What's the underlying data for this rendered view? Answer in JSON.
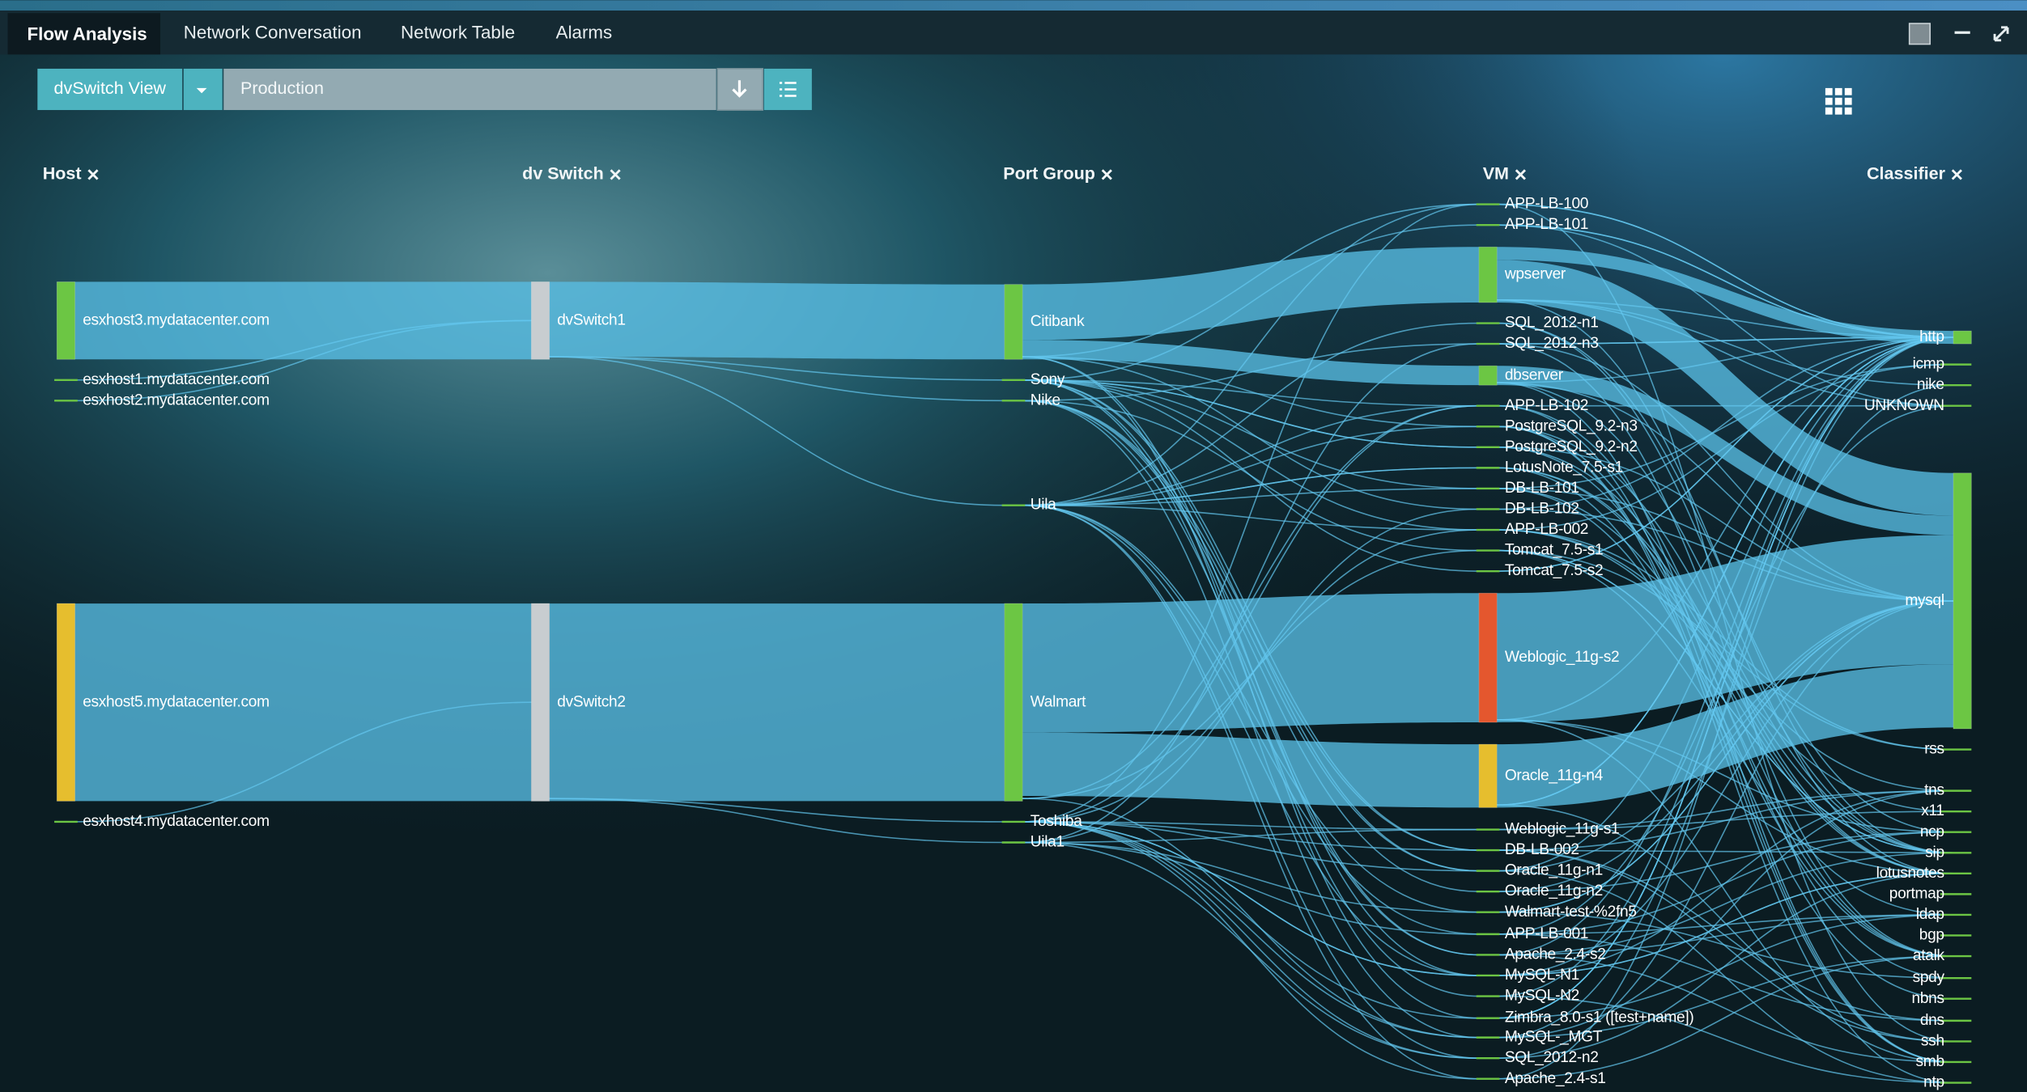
{
  "tabs": [
    "Flow Analysis",
    "Network Conversation",
    "Network Table",
    "Alarms"
  ],
  "toolbar": {
    "view_button": "dvSwitch View",
    "filter": "Production"
  },
  "columns": [
    {
      "title": "Host",
      "nodes": [
        "esxhost3.mydatacenter.com",
        "esxhost1.mydatacenter.com",
        "esxhost2.mydatacenter.com",
        "esxhost5.mydatacenter.com",
        "esxhost4.mydatacenter.com"
      ]
    },
    {
      "title": "dv Switch",
      "nodes": [
        "dvSwitch1",
        "dvSwitch2"
      ]
    },
    {
      "title": "Port Group",
      "nodes": [
        "Citibank",
        "Sony",
        "Nike",
        "Uila",
        "Walmart",
        "Toshiba",
        "Uila1"
      ]
    },
    {
      "title": "VM",
      "nodes": [
        "APP-LB-100",
        "APP-LB-101",
        "wpserver",
        "SQL_2012-n1",
        "SQL_2012-n3",
        "dbserver",
        "APP-LB-102",
        "PostgreSQL_9.2-n3",
        "PostgreSQL_9.2-n2",
        "LotusNote_7.5-s1",
        "DB-LB-101",
        "DB-LB-102",
        "APP-LB-002",
        "Tomcat_7.5-s1",
        "Tomcat_7.5-s2",
        "Weblogic_11g-s2",
        "Oracle_11g-n4",
        "Weblogic_11g-s1",
        "DB-LB-002",
        "Oracle_11g-n1",
        "Oracle_11g-n2",
        "Walmart-test-%2fn5",
        "APP-LB-001",
        "Apache_2.4-s2",
        "MySQL-N1",
        "MySQL-N2",
        "Zimbra_8.0-s1 ([test+name])",
        "MySQL-_MGT",
        "SQL_2012-n2",
        "Apache_2.4-s1"
      ]
    },
    {
      "title": "Classifier",
      "nodes": [
        "http",
        "icmp",
        "nike",
        "UNKNOWN",
        "mysql",
        "rss",
        "tns",
        "x11",
        "ncp",
        "sip",
        "lotusnotes",
        "portmap",
        "ldap",
        "bgp",
        "atalk",
        "spdy",
        "nbns",
        "dns",
        "ssh",
        "smb",
        "ntp"
      ]
    }
  ]
}
